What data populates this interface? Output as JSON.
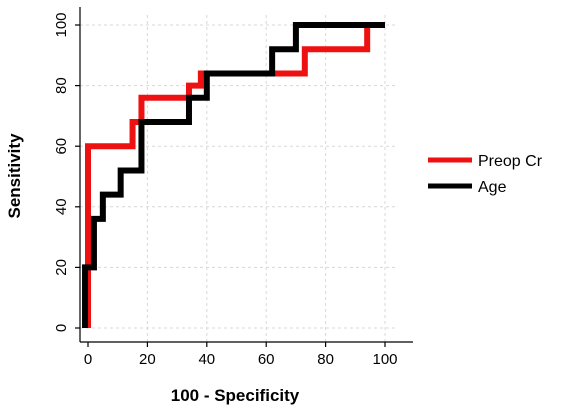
{
  "chart_data": {
    "type": "line",
    "title": "",
    "xlabel": "100 - Specificity",
    "ylabel": "Sensitivity",
    "xlim": [
      0,
      100
    ],
    "ylim": [
      0,
      100
    ],
    "xticks": [
      0,
      20,
      40,
      60,
      80,
      100
    ],
    "yticks": [
      0,
      20,
      40,
      60,
      80,
      100
    ],
    "grid": true,
    "legend_position": "right",
    "series": [
      {
        "name": "Preop Cr",
        "color": "#ee1111",
        "x": [
          0,
          0,
          15,
          15,
          18,
          18,
          34,
          34,
          38,
          38,
          62,
          62,
          73,
          73,
          94,
          94,
          100
        ],
        "y": [
          0,
          60,
          60,
          68,
          68,
          76,
          76,
          80,
          80,
          84,
          84,
          84,
          84,
          92,
          92,
          100,
          100
        ]
      },
      {
        "name": "Age",
        "color": "#000000",
        "x": [
          -1,
          -1,
          2,
          2,
          5,
          5,
          11,
          11,
          18,
          18,
          34,
          34,
          38,
          38,
          40,
          40,
          62,
          62,
          70,
          70,
          100
        ],
        "y": [
          0,
          20,
          20,
          36,
          36,
          44,
          44,
          52,
          52,
          68,
          68,
          76,
          76,
          76,
          76,
          84,
          84,
          92,
          92,
          100,
          100
        ]
      }
    ]
  }
}
